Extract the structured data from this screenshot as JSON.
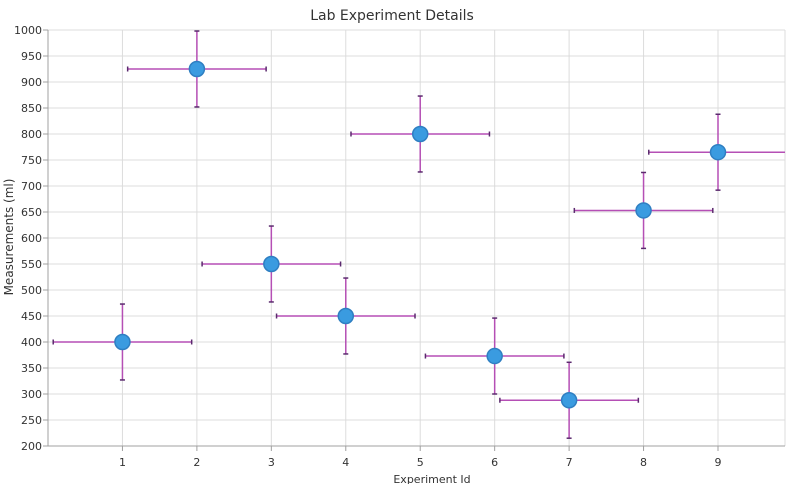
{
  "chart_data": {
    "type": "scatter",
    "title": "Lab Experiment Details",
    "xlabel": "Experiment Id",
    "ylabel": "Measurements (ml)",
    "xlim": [
      0,
      9.9
    ],
    "ylim": [
      200,
      1000
    ],
    "xticks": [
      1,
      2,
      3,
      4,
      5,
      6,
      7,
      8,
      9
    ],
    "yticks": [
      200,
      250,
      300,
      350,
      400,
      450,
      500,
      550,
      600,
      650,
      700,
      750,
      800,
      850,
      900,
      950,
      1000
    ],
    "grid": true,
    "points": [
      {
        "x": 1,
        "y": 400,
        "x_err": 0.93,
        "y_err": 73
      },
      {
        "x": 2,
        "y": 925,
        "x_err": 0.93,
        "y_err": 73
      },
      {
        "x": 3,
        "y": 550,
        "x_err": 0.93,
        "y_err": 73
      },
      {
        "x": 4,
        "y": 450,
        "x_err": 0.93,
        "y_err": 73
      },
      {
        "x": 5,
        "y": 800,
        "x_err": 0.93,
        "y_err": 73
      },
      {
        "x": 6,
        "y": 373,
        "x_err": 0.93,
        "y_err": 73
      },
      {
        "x": 7,
        "y": 288,
        "x_err": 0.93,
        "y_err": 73
      },
      {
        "x": 8,
        "y": 653,
        "x_err": 0.93,
        "y_err": 73
      },
      {
        "x": 9,
        "y": 765,
        "x_err": 0.93,
        "y_err": 73
      }
    ],
    "colors": {
      "marker_fill": "#3a9be0",
      "marker_stroke": "#2f7fc2",
      "error_bar": "#b54fb5",
      "error_cap": "#5b2a6e",
      "grid": "#dcdcdc",
      "axis": "#a0a0a0"
    }
  }
}
